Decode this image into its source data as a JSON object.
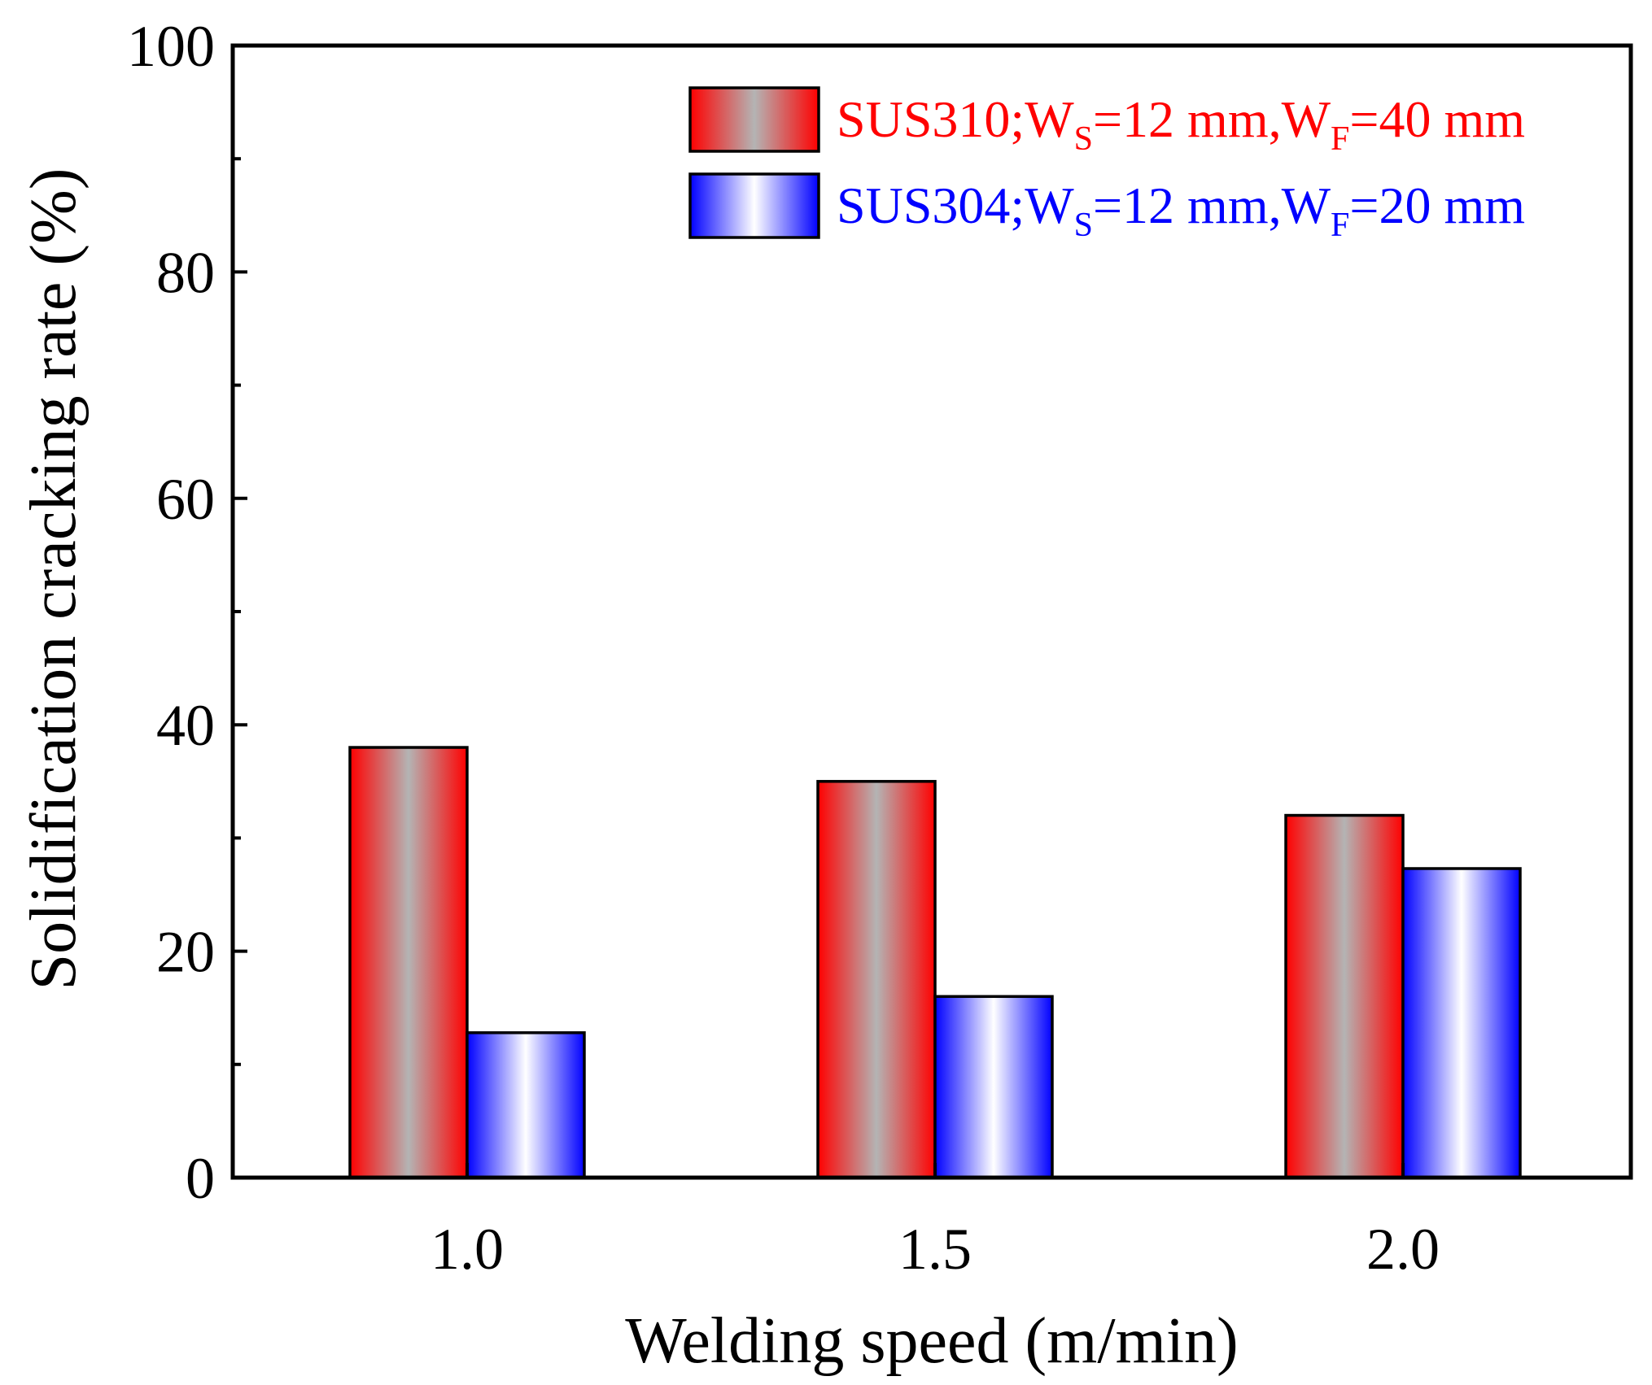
{
  "chart_data": {
    "type": "bar",
    "categories": [
      "1.0",
      "1.5",
      "2.0"
    ],
    "series": [
      {
        "name": "SUS310;WS=12 mm,WF=40 mm",
        "label_parts": {
          "pre": "SUS310;W",
          "sub1": "S",
          "mid": "=12 mm,W",
          "sub2": "F",
          "post": "=40 mm"
        },
        "values": [
          38,
          35,
          32
        ],
        "color": "#ff0000",
        "center_color": "#b4b4b4",
        "text_color": "#ff0000"
      },
      {
        "name": "SUS304;WS=12 mm,WF=20 mm",
        "label_parts": {
          "pre": "SUS304;W",
          "sub1": "S",
          "mid": "=12 mm,W",
          "sub2": "F",
          "post": "=20 mm"
        },
        "values": [
          12.8,
          16,
          27.3
        ],
        "color": "#0000ff",
        "center_color": "#ffffff",
        "text_color": "#0000ff"
      }
    ],
    "xlabel": "Welding speed (m/min)",
    "ylabel": "Solidification cracking rate (%)",
    "ylim": [
      0,
      100
    ],
    "yticks": [
      "0",
      "20",
      "40",
      "60",
      "80",
      "100"
    ],
    "grid": false,
    "legend_position": "top-right"
  }
}
